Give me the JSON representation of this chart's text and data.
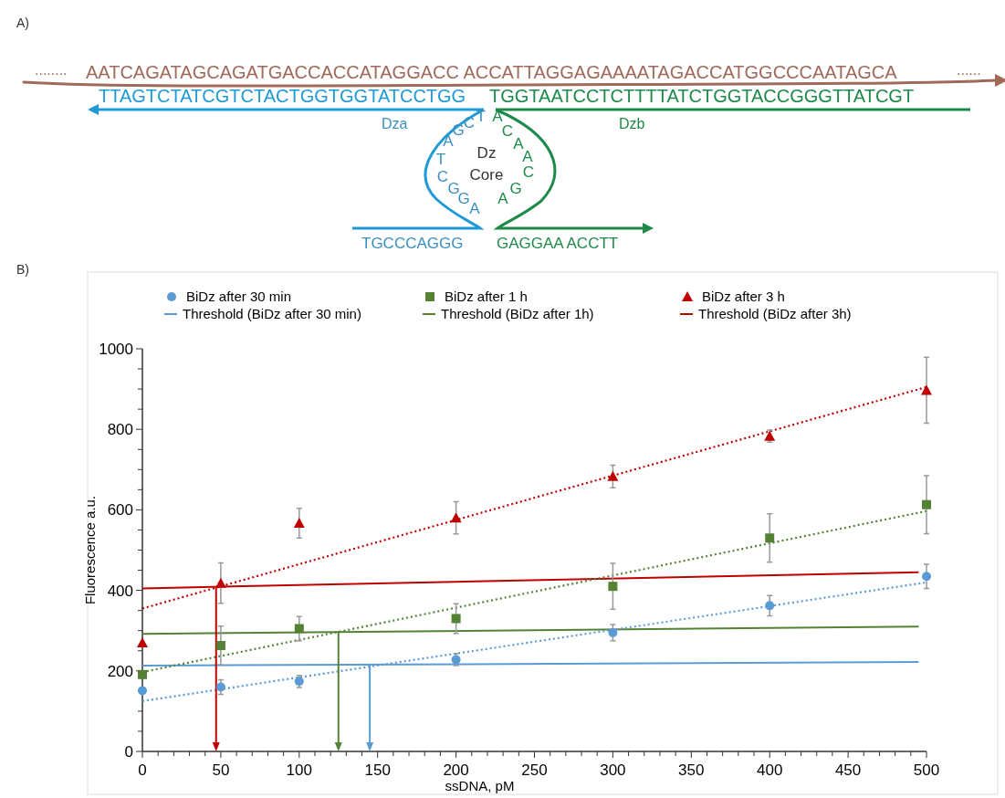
{
  "chart_data": [
    {
      "type": "other",
      "title": "A)",
      "annotations": [
        "........",
        "AATCAGATAGCAGATGACCACCATAGGACC ACCATTAGGAGAAAATAGACCATGGCCCAATAGCA",
        "......",
        "TTAGTCTATCGTCTACTGGTGGTATCCTGG",
        "TGGTAATCCTCTTTTATCTGGTACCGGGTTATCGT",
        "Dza",
        "Dzb",
        "AGCTTCGGA",
        "ACAACGA",
        "Dz",
        "Core",
        "TGCCCAGGG",
        "GAGGAA ACCTT"
      ]
    },
    {
      "type": "scatter",
      "title": "B)",
      "xlabel": "ssDNA, pM",
      "ylabel": "Fluorescence a.u.",
      "legend": "top",
      "grid": false,
      "xlim": [
        0,
        500
      ],
      "ylim": [
        0,
        1000
      ],
      "xticks": [
        0,
        {
          "value": 10,
          "label": null
        },
        {
          "value": 20,
          "label": null
        },
        {
          "value": 30,
          "label": null
        },
        {
          "value": 40,
          "label": null
        },
        50,
        {
          "value": 60,
          "label": null
        },
        {
          "value": 70,
          "label": null
        },
        {
          "value": 80,
          "label": null
        },
        {
          "value": 90,
          "label": null
        },
        100,
        {
          "value": 110,
          "label": null
        },
        {
          "value": 120,
          "label": null
        },
        {
          "value": 130,
          "label": null
        },
        {
          "value": 140,
          "label": null
        },
        150,
        {
          "value": 160,
          "label": null
        },
        {
          "value": 170,
          "label": null
        },
        {
          "value": 180,
          "label": null
        },
        {
          "value": 190,
          "label": null
        },
        200,
        {
          "value": 210,
          "label": null
        },
        {
          "value": 220,
          "label": null
        },
        {
          "value": 230,
          "label": null
        },
        {
          "value": 240,
          "label": null
        },
        250,
        {
          "value": 260,
          "label": null
        },
        {
          "value": 270,
          "label": null
        },
        {
          "value": 280,
          "label": null
        },
        {
          "value": 290,
          "label": null
        },
        300,
        {
          "value": 310,
          "label": null
        },
        {
          "value": 320,
          "label": null
        },
        {
          "value": 330,
          "label": null
        },
        {
          "value": 340,
          "label": null
        },
        350,
        {
          "value": 360,
          "label": null
        },
        {
          "value": 370,
          "label": null
        },
        {
          "value": 380,
          "label": null
        },
        {
          "value": 390,
          "label": null
        },
        400,
        {
          "value": 410,
          "label": null
        },
        {
          "value": 420,
          "label": null
        },
        {
          "value": 430,
          "label": null
        },
        {
          "value": 440,
          "label": null
        },
        450,
        {
          "value": 460,
          "label": null
        },
        {
          "value": 470,
          "label": null
        },
        {
          "value": 480,
          "label": null
        },
        {
          "value": 490,
          "label": null
        },
        500
      ],
      "yticks": [
        0,
        {
          "value": 50,
          "label": null
        },
        {
          "value": 100,
          "label": null
        },
        {
          "value": 150,
          "label": null
        },
        200,
        {
          "value": 250,
          "label": null
        },
        {
          "value": 300,
          "label": null
        },
        {
          "value": 350,
          "label": null
        },
        400,
        {
          "value": 450,
          "label": null
        },
        {
          "value": 500,
          "label": null
        },
        {
          "value": 550,
          "label": null
        },
        600,
        {
          "value": 650,
          "label": null
        },
        {
          "value": 700,
          "label": null
        },
        {
          "value": 750,
          "label": null
        },
        800,
        {
          "value": 850,
          "label": null
        },
        {
          "value": 900,
          "label": null
        },
        {
          "value": 950,
          "label": null
        },
        1000
      ],
      "series": [
        {
          "name": "BiDz after 30 min",
          "type": "scatter",
          "marker": "circle",
          "color": "#5b9bd5",
          "x": [
            0,
            50,
            100,
            200,
            300,
            400,
            500
          ],
          "values": [
            151,
            160,
            174,
            228,
            295,
            362,
            435
          ],
          "errors": [
            null,
            18,
            15,
            15,
            20,
            25,
            30
          ]
        },
        {
          "name": "BiDz after 1 h",
          "type": "scatter",
          "marker": "square",
          "color": "#548235",
          "x": [
            0,
            50,
            100,
            200,
            300,
            400,
            500
          ],
          "values": [
            191,
            263,
            305,
            330,
            410,
            530,
            613
          ],
          "errors": [
            null,
            48,
            30,
            37,
            57,
            60,
            72
          ]
        },
        {
          "name": "BiDz after 3 h",
          "type": "scatter",
          "marker": "triangle",
          "color": "#c00000",
          "x": [
            0,
            50,
            100,
            200,
            300,
            400,
            500
          ],
          "values": [
            270,
            418,
            567,
            580,
            683,
            783,
            897
          ],
          "errors": [
            null,
            50,
            37,
            40,
            28,
            15,
            82
          ]
        },
        {
          "name": "Threshold (BiDz after 30 min)",
          "type": "line",
          "line_style": "solid",
          "color": "#5b9bd5",
          "x": [
            0,
            495
          ],
          "values": [
            213,
            222
          ]
        },
        {
          "name": "Threshold (BiDz after 1h)",
          "type": "line",
          "line_style": "solid",
          "color": "#548235",
          "x": [
            0,
            495
          ],
          "values": [
            292,
            310
          ]
        },
        {
          "name": "Threshold (BiDz after 3h)",
          "type": "line",
          "line_style": "solid",
          "color": "#c00000",
          "x": [
            0,
            495
          ],
          "values": [
            405,
            445
          ]
        },
        {
          "type": "line",
          "line_style": "dotted",
          "color": "#5b9bd5",
          "x": [
            0,
            500
          ],
          "values": [
            125,
            420
          ]
        },
        {
          "type": "line",
          "line_style": "dotted",
          "color": "#548235",
          "x": [
            0,
            500
          ],
          "values": [
            197,
            597
          ]
        },
        {
          "type": "line",
          "line_style": "dotted",
          "color": "#c00000",
          "x": [
            0,
            500
          ],
          "values": [
            355,
            905
          ]
        }
      ],
      "ref_lines": [
        {
          "axis": "x",
          "value": 47,
          "color": "#c00000"
        },
        {
          "axis": "x",
          "value": 125,
          "color": "#548235"
        },
        {
          "axis": "x",
          "value": 145,
          "color": "#5b9bd5"
        }
      ]
    }
  ]
}
